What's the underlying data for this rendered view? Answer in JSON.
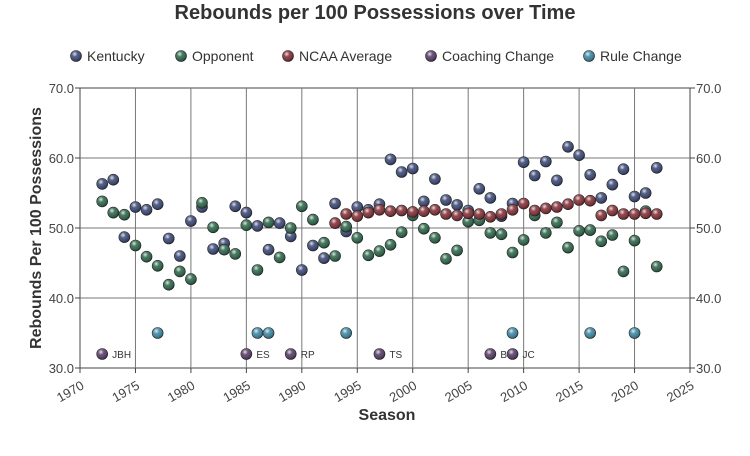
{
  "chart_data": {
    "type": "scatter",
    "title": "Rebounds per 100 Possessions over Time",
    "xlabel": "Season",
    "ylabel": "Rebounds Per 100 Possessions",
    "xlim": [
      1970,
      2025
    ],
    "ylim": [
      30,
      70
    ],
    "x_ticks": [
      "1970",
      "1975",
      "1980",
      "1985",
      "1990",
      "1995",
      "2000",
      "2005",
      "2010",
      "2015",
      "2020",
      "2025"
    ],
    "y_ticks": [
      "30.0",
      "40.0",
      "50.0",
      "60.0",
      "70.0"
    ],
    "grid": true,
    "legend_position": "top",
    "series": [
      {
        "name": "Kentucky",
        "color": "#2b3a6b",
        "points": [
          [
            1972,
            56.3
          ],
          [
            1973,
            56.9
          ],
          [
            1974,
            48.7
          ],
          [
            1975,
            53.0
          ],
          [
            1976,
            52.6
          ],
          [
            1977,
            53.4
          ],
          [
            1978,
            48.5
          ],
          [
            1979,
            46.0
          ],
          [
            1980,
            51.0
          ],
          [
            1981,
            53.0
          ],
          [
            1982,
            47.0
          ],
          [
            1983,
            47.8
          ],
          [
            1984,
            53.1
          ],
          [
            1985,
            52.2
          ],
          [
            1986,
            50.3
          ],
          [
            1987,
            46.9
          ],
          [
            1988,
            50.7
          ],
          [
            1989,
            48.8
          ],
          [
            1990,
            44.0
          ],
          [
            1991,
            47.5
          ],
          [
            1992,
            45.7
          ],
          [
            1993,
            53.5
          ],
          [
            1994,
            49.5
          ],
          [
            1995,
            53.0
          ],
          [
            1996,
            52.6
          ],
          [
            1997,
            53.4
          ],
          [
            1998,
            59.8
          ],
          [
            1999,
            58.0
          ],
          [
            2000,
            58.5
          ],
          [
            2001,
            53.8
          ],
          [
            2002,
            57.0
          ],
          [
            2003,
            54.0
          ],
          [
            2004,
            53.3
          ],
          [
            2005,
            52.5
          ],
          [
            2006,
            55.6
          ],
          [
            2007,
            54.3
          ],
          [
            2008,
            51.7
          ],
          [
            2009,
            53.5
          ],
          [
            2010,
            59.4
          ],
          [
            2011,
            57.5
          ],
          [
            2012,
            59.5
          ],
          [
            2013,
            56.8
          ],
          [
            2014,
            61.6
          ],
          [
            2015,
            60.4
          ],
          [
            2016,
            57.6
          ],
          [
            2017,
            54.3
          ],
          [
            2018,
            56.2
          ],
          [
            2019,
            58.4
          ],
          [
            2020,
            54.5
          ],
          [
            2021,
            55.0
          ],
          [
            2022,
            58.6
          ]
        ]
      },
      {
        "name": "Opponent",
        "color": "#1d5a3c",
        "points": [
          [
            1972,
            53.8
          ],
          [
            1973,
            52.2
          ],
          [
            1974,
            51.9
          ],
          [
            1975,
            47.5
          ],
          [
            1976,
            45.9
          ],
          [
            1977,
            44.6
          ],
          [
            1978,
            41.9
          ],
          [
            1979,
            43.8
          ],
          [
            1980,
            42.7
          ],
          [
            1981,
            53.6
          ],
          [
            1982,
            50.1
          ],
          [
            1983,
            46.9
          ],
          [
            1984,
            46.3
          ],
          [
            1985,
            50.4
          ],
          [
            1986,
            44.0
          ],
          [
            1987,
            50.8
          ],
          [
            1988,
            45.8
          ],
          [
            1989,
            50.0
          ],
          [
            1990,
            53.1
          ],
          [
            1991,
            51.2
          ],
          [
            1992,
            47.9
          ],
          [
            1993,
            46.0
          ],
          [
            1994,
            50.2
          ],
          [
            1995,
            48.6
          ],
          [
            1996,
            46.1
          ],
          [
            1997,
            46.7
          ],
          [
            1998,
            47.6
          ],
          [
            1999,
            49.4
          ],
          [
            2000,
            51.8
          ],
          [
            2001,
            49.9
          ],
          [
            2002,
            48.6
          ],
          [
            2003,
            45.6
          ],
          [
            2004,
            46.8
          ],
          [
            2005,
            50.9
          ],
          [
            2006,
            51.1
          ],
          [
            2007,
            49.3
          ],
          [
            2008,
            49.1
          ],
          [
            2009,
            46.5
          ],
          [
            2010,
            48.3
          ],
          [
            2011,
            51.8
          ],
          [
            2012,
            49.3
          ],
          [
            2013,
            50.8
          ],
          [
            2014,
            47.2
          ],
          [
            2015,
            49.6
          ],
          [
            2016,
            49.7
          ],
          [
            2017,
            48.1
          ],
          [
            2018,
            49.0
          ],
          [
            2019,
            43.8
          ],
          [
            2020,
            48.2
          ],
          [
            2021,
            52.4
          ],
          [
            2022,
            44.5
          ]
        ]
      },
      {
        "name": "NCAA Average",
        "color": "#7a1f26",
        "points": [
          [
            1993,
            50.7
          ],
          [
            1994,
            52.0
          ],
          [
            1995,
            51.7
          ],
          [
            1996,
            52.2
          ],
          [
            1997,
            52.6
          ],
          [
            1998,
            52.4
          ],
          [
            1999,
            52.5
          ],
          [
            2000,
            52.3
          ],
          [
            2001,
            52.4
          ],
          [
            2002,
            52.6
          ],
          [
            2003,
            52.0
          ],
          [
            2004,
            51.8
          ],
          [
            2005,
            52.1
          ],
          [
            2006,
            52.0
          ],
          [
            2007,
            51.6
          ],
          [
            2008,
            52.0
          ],
          [
            2009,
            52.6
          ],
          [
            2010,
            53.5
          ],
          [
            2011,
            52.5
          ],
          [
            2012,
            52.8
          ],
          [
            2013,
            53.0
          ],
          [
            2014,
            53.4
          ],
          [
            2015,
            54.0
          ],
          [
            2016,
            53.9
          ],
          [
            2017,
            51.8
          ],
          [
            2018,
            52.5
          ],
          [
            2019,
            52.0
          ],
          [
            2020,
            52.0
          ],
          [
            2021,
            52.1
          ],
          [
            2022,
            52.0
          ]
        ]
      },
      {
        "name": "Coaching Change",
        "color": "#4a2d5c",
        "points": [
          [
            1972,
            32.0,
            "JBH"
          ],
          [
            1985,
            32.0,
            "ES"
          ],
          [
            1989,
            32.0,
            "RP"
          ],
          [
            1997,
            32.0,
            "TS"
          ],
          [
            2007,
            32.0,
            "BG"
          ],
          [
            2009,
            32.0,
            "JC"
          ]
        ]
      },
      {
        "name": "Rule Change",
        "color": "#2e7e9c",
        "points": [
          [
            1977,
            35.0
          ],
          [
            1986,
            35.0
          ],
          [
            1987,
            35.0
          ],
          [
            1994,
            35.0
          ],
          [
            2009,
            35.0
          ],
          [
            2016,
            35.0
          ],
          [
            2020,
            35.0
          ]
        ]
      }
    ]
  }
}
